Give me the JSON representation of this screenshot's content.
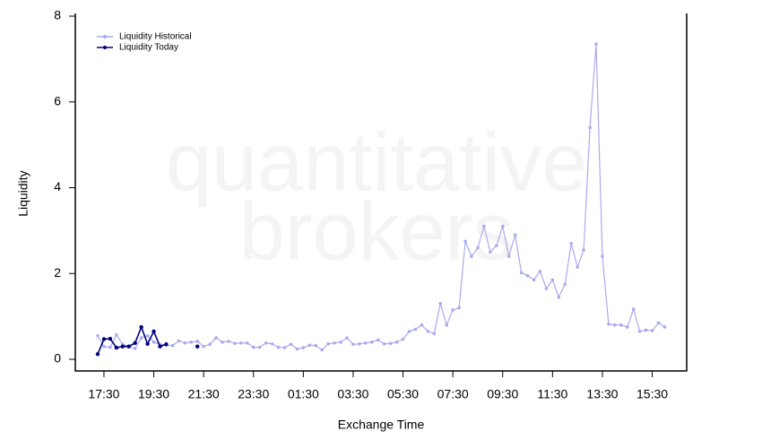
{
  "chart_data": {
    "type": "line",
    "watermark": [
      "quantitative",
      "brokers"
    ],
    "xlabel": "Exchange Time",
    "ylabel": "Liquidity",
    "categories": [
      null,
      "17:30",
      null,
      null,
      null,
      null,
      null,
      null,
      null,
      "19:30",
      null,
      null,
      null,
      null,
      null,
      null,
      null,
      "21:30",
      null,
      null,
      null,
      null,
      null,
      null,
      null,
      "23:30",
      null,
      null,
      null,
      null,
      null,
      null,
      null,
      "01:30",
      null,
      null,
      null,
      null,
      null,
      null,
      null,
      "03:30",
      null,
      null,
      null,
      null,
      null,
      null,
      null,
      "05:30",
      null,
      null,
      null,
      null,
      null,
      null,
      null,
      "07:30",
      null,
      null,
      null,
      null,
      null,
      null,
      null,
      "09:30",
      null,
      null,
      null,
      null,
      null,
      null,
      null,
      "11:30",
      null,
      null,
      null,
      null,
      null,
      null,
      null,
      "13:30",
      null,
      null,
      null,
      null,
      null,
      null,
      null,
      "15:30",
      null,
      null
    ],
    "series": [
      {
        "name": "Liquidity Historical",
        "color": "#aaaaee",
        "values": [
          0.55,
          0.3,
          0.28,
          0.57,
          0.35,
          0.3,
          0.25,
          0.5,
          0.55,
          0.4,
          0.35,
          0.33,
          0.32,
          0.43,
          0.38,
          0.4,
          0.42,
          0.3,
          0.35,
          0.5,
          0.4,
          0.42,
          0.37,
          0.38,
          0.38,
          0.28,
          0.28,
          0.38,
          0.36,
          0.28,
          0.27,
          0.35,
          0.24,
          0.27,
          0.33,
          0.32,
          0.22,
          0.36,
          0.38,
          0.4,
          0.5,
          0.35,
          0.36,
          0.38,
          0.4,
          0.45,
          0.36,
          0.37,
          0.4,
          0.47,
          0.65,
          0.7,
          0.8,
          0.65,
          0.6,
          1.3,
          0.8,
          1.15,
          1.2,
          2.75,
          2.4,
          2.6,
          3.1,
          2.5,
          2.65,
          3.1,
          2.4,
          2.9,
          2.02,
          1.95,
          1.85,
          2.05,
          1.65,
          1.85,
          1.45,
          1.75,
          2.7,
          2.15,
          2.55,
          5.4,
          7.35,
          2.4,
          0.82,
          0.8,
          0.8,
          0.75,
          1.17,
          0.65,
          0.68,
          0.67,
          0.85,
          0.75
        ]
      },
      {
        "name": "Liquidity Today",
        "color": "#00007f",
        "values": [
          0.12,
          0.47,
          0.48,
          0.27,
          0.3,
          0.3,
          0.38,
          0.75,
          0.36,
          0.65,
          0.3,
          0.35,
          null,
          null,
          null,
          null,
          0.3,
          null,
          null,
          null,
          null,
          null,
          null,
          null,
          null,
          null,
          null,
          null,
          null,
          null,
          null,
          null,
          null,
          null,
          null,
          null,
          null,
          null,
          null,
          null,
          null,
          null,
          null,
          null,
          null,
          null,
          null,
          null,
          null,
          null,
          null,
          null,
          null,
          null,
          null,
          null,
          null,
          null,
          null,
          null,
          null,
          null,
          null,
          null,
          null,
          null,
          null,
          null,
          null,
          null,
          null,
          null,
          null,
          null,
          null,
          null,
          null,
          null,
          null,
          null,
          null,
          null,
          null,
          null,
          null,
          null,
          null,
          null,
          null,
          null,
          null,
          null
        ]
      }
    ],
    "ylim": [
      0,
      8
    ],
    "yticks": [
      0,
      2,
      4,
      6,
      8
    ],
    "legend": "upper left"
  }
}
